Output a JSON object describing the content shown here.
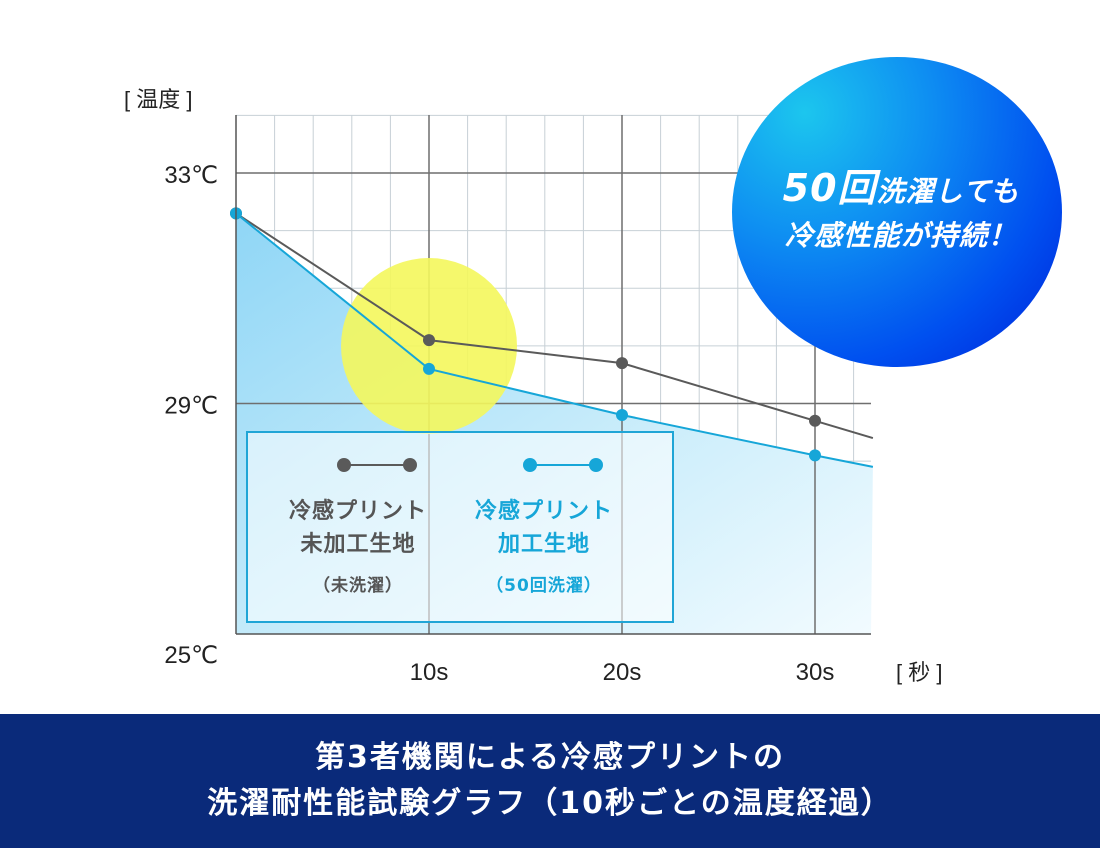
{
  "chart_data": {
    "type": "line",
    "y_axis_label": "[ 温度 ]",
    "x_axis_label": "[ 秒 ]",
    "y_ticks": [
      {
        "label": "33℃",
        "value": 33
      },
      {
        "label": "29℃",
        "value": 29
      },
      {
        "label": "25℃",
        "value": 25
      }
    ],
    "x_ticks": [
      {
        "label": "10s",
        "value": 10
      },
      {
        "label": "20s",
        "value": 20
      },
      {
        "label": "30s",
        "value": 30
      }
    ],
    "xlim": [
      0,
      33
    ],
    "ylim": [
      25,
      34
    ],
    "grid": true,
    "highlight_at_x": 10,
    "series": [
      {
        "name": "冷感プリント未加工生地（未洗濯）",
        "color": "#5a5a5a",
        "x": [
          0,
          10,
          20,
          30,
          33
        ],
        "y": [
          32.3,
          30.1,
          29.7,
          28.7,
          28.4
        ]
      },
      {
        "name": "冷感プリント加工生地（50回洗濯）",
        "color": "#16a6d8",
        "x": [
          0,
          10,
          20,
          30,
          33
        ],
        "y": [
          32.3,
          29.6,
          28.8,
          28.1,
          27.9
        ]
      }
    ]
  },
  "legend": [
    {
      "name": "冷感プリント\n未加工生地",
      "note": "（未洗濯）",
      "color": "#5a5a5a"
    },
    {
      "name": "冷感プリント\n加工生地",
      "note": "（50回洗濯）",
      "color": "#16a6d8"
    }
  ],
  "badge": {
    "line1_number": "50回",
    "line1_rest": "洗濯しても",
    "line2": "冷感性能が持続！"
  },
  "caption": {
    "line1": "第3者機関による冷感プリントの",
    "line2": "洗濯耐性能試験グラフ（10秒ごとの温度経過）"
  }
}
